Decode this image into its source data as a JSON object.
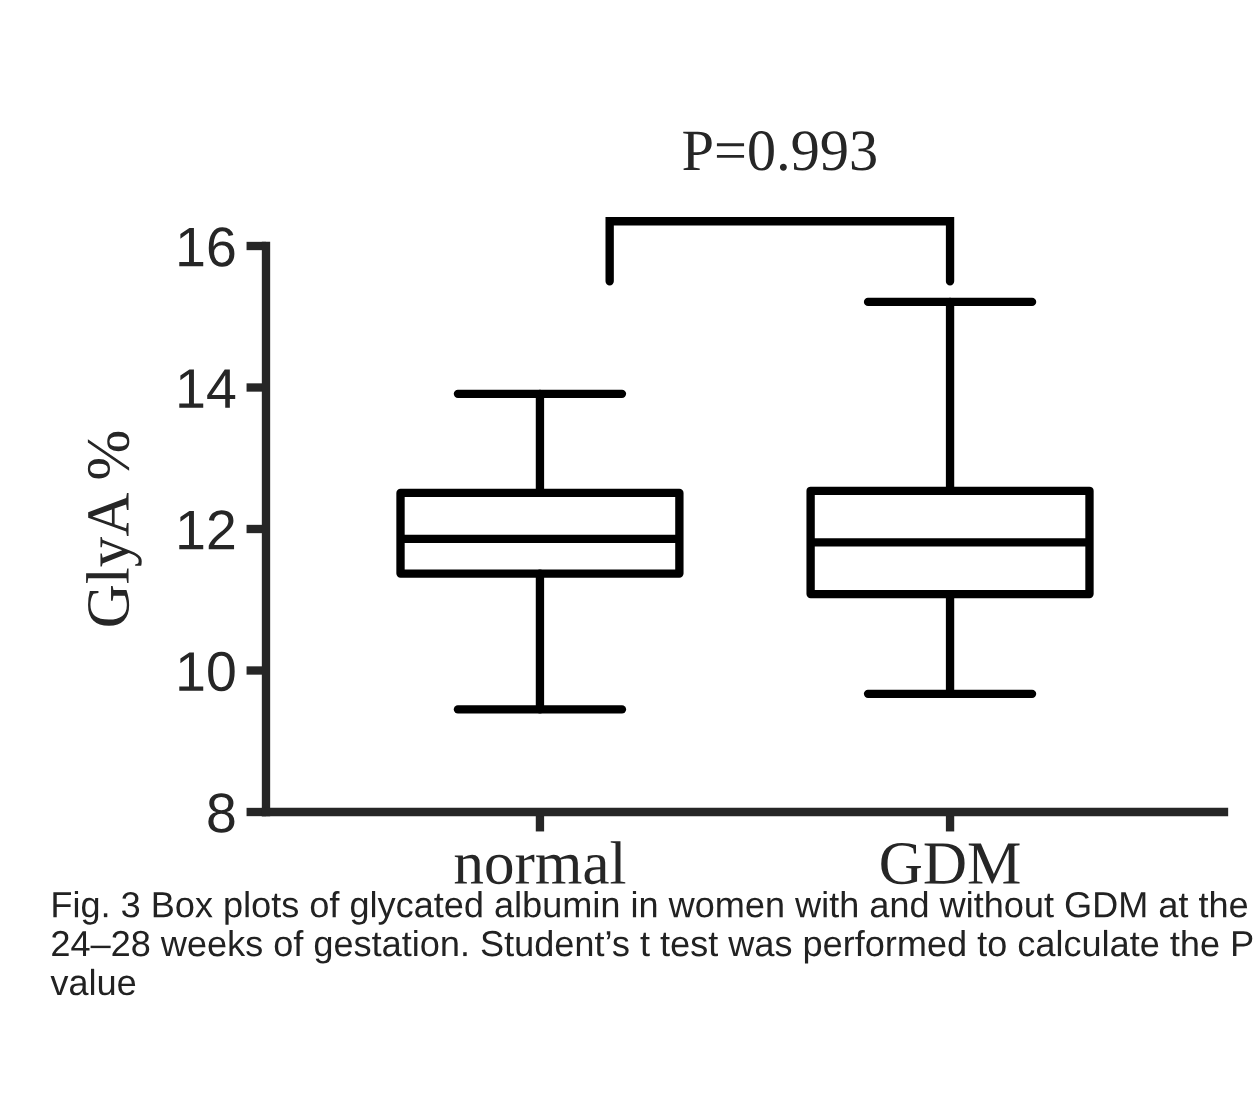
{
  "chart_data": {
    "type": "box",
    "categories": [
      "normal",
      "GDM"
    ],
    "boxes": [
      {
        "low": 9.45,
        "q1": 11.37,
        "median": 11.86,
        "q3": 12.51,
        "high": 13.91
      },
      {
        "low": 9.67,
        "q1": 11.08,
        "median": 11.81,
        "q3": 12.54,
        "high": 15.21
      }
    ],
    "ylabel": "GlyA %",
    "ylim": [
      8,
      16
    ],
    "yticks": [
      8,
      10,
      12,
      14,
      16
    ],
    "annotations": [
      "P=0.993",
      "Fig. 3 Box plots of glycated albumin in women with and without GDM at the 24–28 weeks of gestation. Student’s t test was performed to calculate the P value"
    ]
  }
}
